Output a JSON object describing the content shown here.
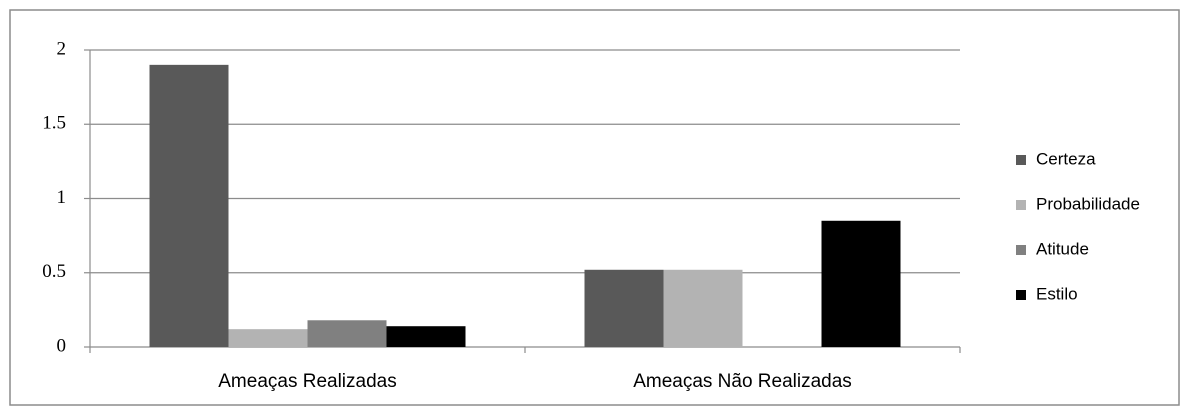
{
  "chart_data": {
    "type": "bar",
    "categories": [
      "Ameaças Realizadas",
      "Ameaças Não Realizadas"
    ],
    "series": [
      {
        "name": "Certeza",
        "color": "#595959",
        "values": [
          1.9,
          0.52
        ]
      },
      {
        "name": "Probabilidade",
        "color": "#b3b3b3",
        "values": [
          0.12,
          0.52
        ]
      },
      {
        "name": "Atitude",
        "color": "#808080",
        "values": [
          0.18,
          0
        ]
      },
      {
        "name": "Estilo",
        "color": "#000000",
        "values": [
          0.14,
          0.85
        ]
      }
    ],
    "ylim": [
      0,
      2
    ],
    "yticks": [
      0,
      0.5,
      1,
      1.5,
      2
    ],
    "grid": true,
    "legend": "right"
  }
}
